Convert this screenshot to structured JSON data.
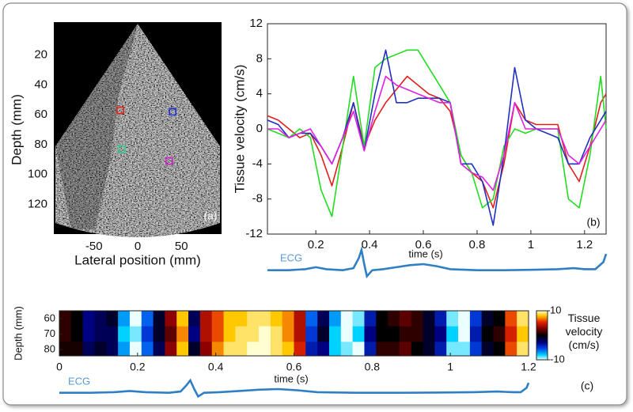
{
  "chart_data": [
    {
      "type": "image",
      "xlabel": "Lateral position (mm)",
      "ylabel": "Depth (mm)",
      "panel_label": "(a)",
      "xlim": [
        -96,
        96
      ],
      "ylim": [
        0,
        140
      ],
      "xticks": [
        -50,
        0,
        50
      ],
      "yticks": [
        20,
        40,
        60,
        80,
        100,
        120
      ],
      "markers": [
        {
          "x": -20,
          "y": 57,
          "color": "#e0201c"
        },
        {
          "x": 40,
          "y": 58,
          "color": "#2030d0"
        },
        {
          "x": -18,
          "y": 83,
          "color": "#30d090"
        },
        {
          "x": 36,
          "y": 91,
          "color": "#d020d0"
        }
      ]
    },
    {
      "type": "line",
      "xlabel": "time (s)",
      "ylabel": "Tissue velocity (cm/s)",
      "panel_label": "(b)",
      "xlim": [
        0.02,
        1.28
      ],
      "ylim": [
        -12,
        12
      ],
      "xticks": [
        0.2,
        0.4,
        0.6,
        0.8,
        1,
        1.2
      ],
      "yticks": [
        -12,
        -8,
        -4,
        0,
        4,
        8,
        12
      ],
      "x": [
        0.02,
        0.06,
        0.1,
        0.14,
        0.18,
        0.22,
        0.26,
        0.3,
        0.34,
        0.38,
        0.42,
        0.46,
        0.5,
        0.54,
        0.58,
        0.62,
        0.66,
        0.7,
        0.74,
        0.78,
        0.82,
        0.86,
        0.9,
        0.94,
        0.98,
        1.02,
        1.06,
        1.1,
        1.14,
        1.18,
        1.22,
        1.26,
        1.28
      ],
      "series": [
        {
          "color": "#e0201c",
          "values": [
            1.5,
            1,
            0,
            -1,
            -0.5,
            -3,
            -6.5,
            -2,
            3,
            -2,
            1,
            3,
            4.5,
            6,
            5,
            4,
            3.5,
            2,
            -3,
            -5,
            -6,
            -9,
            -4,
            3,
            1,
            0.5,
            0.5,
            0.5,
            -4,
            -6,
            -2,
            3,
            4
          ]
        },
        {
          "color": "#22dd22",
          "values": [
            0,
            -0.5,
            -1,
            0,
            -1,
            -7,
            -10,
            -2,
            6,
            -2,
            7,
            8,
            8.5,
            9,
            9,
            7,
            5,
            3,
            -3,
            -5,
            -9,
            -8,
            -2,
            0,
            -0.5,
            0,
            0,
            0,
            -8,
            -9,
            -3,
            6,
            0
          ]
        },
        {
          "color": "#2030c0",
          "values": [
            1,
            0.5,
            -1,
            -0.5,
            -0.5,
            -2,
            -4,
            -1,
            3,
            -2.5,
            4,
            9,
            3,
            3,
            3.5,
            3.5,
            3.5,
            3,
            -4,
            -4,
            -6,
            -11,
            -3,
            7,
            1,
            0,
            -0.5,
            -1,
            -4,
            -4,
            -1,
            1,
            2
          ]
        },
        {
          "color": "#e020e0",
          "values": [
            0,
            0,
            -1,
            -0.5,
            0,
            -2,
            -4,
            -1,
            2,
            -2.5,
            2,
            6,
            5,
            4.5,
            4,
            3.5,
            3,
            3,
            -4,
            -5,
            -5.5,
            -7,
            -3,
            3,
            0,
            0,
            0,
            0,
            -3,
            -4,
            -2,
            0,
            1
          ]
        }
      ],
      "ecg": {
        "label": "ECG",
        "color": "#2f7fc4",
        "ylim": [
          -0.4,
          1.0
        ],
        "x": [
          0.02,
          0.1,
          0.16,
          0.2,
          0.24,
          0.3,
          0.34,
          0.36,
          0.37,
          0.38,
          0.39,
          0.41,
          0.45,
          0.5,
          0.55,
          0.6,
          0.65,
          0.7,
          0.8,
          0.9,
          1.0,
          1.1,
          1.16,
          1.2,
          1.24,
          1.27,
          1.28
        ],
        "values": [
          0,
          0,
          0.05,
          0.15,
          0.05,
          0,
          0.1,
          0.6,
          1.0,
          0.3,
          -0.3,
          0,
          0.05,
          0.15,
          0.25,
          0.3,
          0.2,
          0.05,
          0,
          0,
          0.02,
          0.05,
          0.1,
          0.05,
          0.05,
          0.4,
          0.8
        ]
      }
    },
    {
      "type": "heatmap",
      "xlabel": "time (s)",
      "ylabel": "Depth (mm)",
      "panel_label": "(c)",
      "colorbar_label": "Tissue velocity (cm/s)",
      "xlim": [
        0,
        1.2
      ],
      "ylim": [
        55,
        84
      ],
      "xticks": [
        0,
        0.2,
        0.4,
        0.6,
        0.8,
        1,
        1.2
      ],
      "yticks": [
        60,
        70,
        80
      ],
      "clim": [
        -10,
        10
      ],
      "cticks": [
        -10,
        10
      ],
      "x": [
        0,
        0.03,
        0.06,
        0.09,
        0.12,
        0.15,
        0.18,
        0.21,
        0.24,
        0.27,
        0.3,
        0.33,
        0.36,
        0.39,
        0.42,
        0.45,
        0.48,
        0.51,
        0.54,
        0.57,
        0.6,
        0.63,
        0.66,
        0.69,
        0.72,
        0.75,
        0.78,
        0.81,
        0.84,
        0.87,
        0.9,
        0.93,
        0.96,
        0.99,
        1.02,
        1.05,
        1.08,
        1.11,
        1.14,
        1.17
      ],
      "y": [
        60,
        70,
        80
      ],
      "z": [
        [
          1,
          0,
          -3,
          -2,
          -1,
          -7,
          -10,
          -6,
          -1,
          3,
          8,
          -2,
          4,
          6,
          8,
          8,
          9,
          9,
          8,
          7,
          4,
          -6,
          -2,
          -7,
          -10,
          -9,
          -4,
          0,
          1,
          2,
          1,
          -1,
          -4,
          -9,
          -10,
          -5,
          -1,
          0,
          6,
          9
        ],
        [
          1,
          0,
          -3,
          -2,
          -2,
          -8,
          -9,
          -5,
          -1,
          2,
          7,
          -3,
          4,
          6,
          8,
          9,
          9,
          10,
          9,
          7,
          4,
          -5,
          -1,
          -8,
          -10,
          -8,
          -3,
          0,
          0,
          1,
          1,
          -1,
          -3,
          -8,
          -10,
          -4,
          0,
          1,
          5,
          8
        ],
        [
          0.5,
          0.5,
          -2,
          -1,
          -2,
          -7,
          -10,
          -6,
          -2,
          3,
          8,
          -1,
          3,
          7,
          9,
          9,
          10,
          10,
          9,
          8,
          5,
          -4,
          -3,
          -8,
          -9,
          -10,
          -4,
          1,
          1,
          2,
          0,
          -1,
          -4,
          -9,
          -9,
          -5,
          -1,
          0,
          6,
          9
        ]
      ],
      "ecg": {
        "label": "ECG",
        "color": "#2f7fc4",
        "ylim": [
          -0.4,
          1.0
        ],
        "x": [
          0,
          0.08,
          0.14,
          0.18,
          0.22,
          0.28,
          0.31,
          0.325,
          0.335,
          0.345,
          0.355,
          0.37,
          0.41,
          0.46,
          0.51,
          0.56,
          0.61,
          0.66,
          0.76,
          0.86,
          0.96,
          1.06,
          1.12,
          1.16,
          1.18,
          1.195,
          1.2
        ],
        "values": [
          0,
          0,
          0.05,
          0.15,
          0.05,
          0,
          0.1,
          0.6,
          1.0,
          0.3,
          -0.3,
          0,
          0.05,
          0.15,
          0.25,
          0.3,
          0.2,
          0.05,
          0,
          0,
          0.02,
          0.05,
          0.1,
          0.05,
          0.05,
          0.4,
          0.8
        ]
      }
    }
  ]
}
